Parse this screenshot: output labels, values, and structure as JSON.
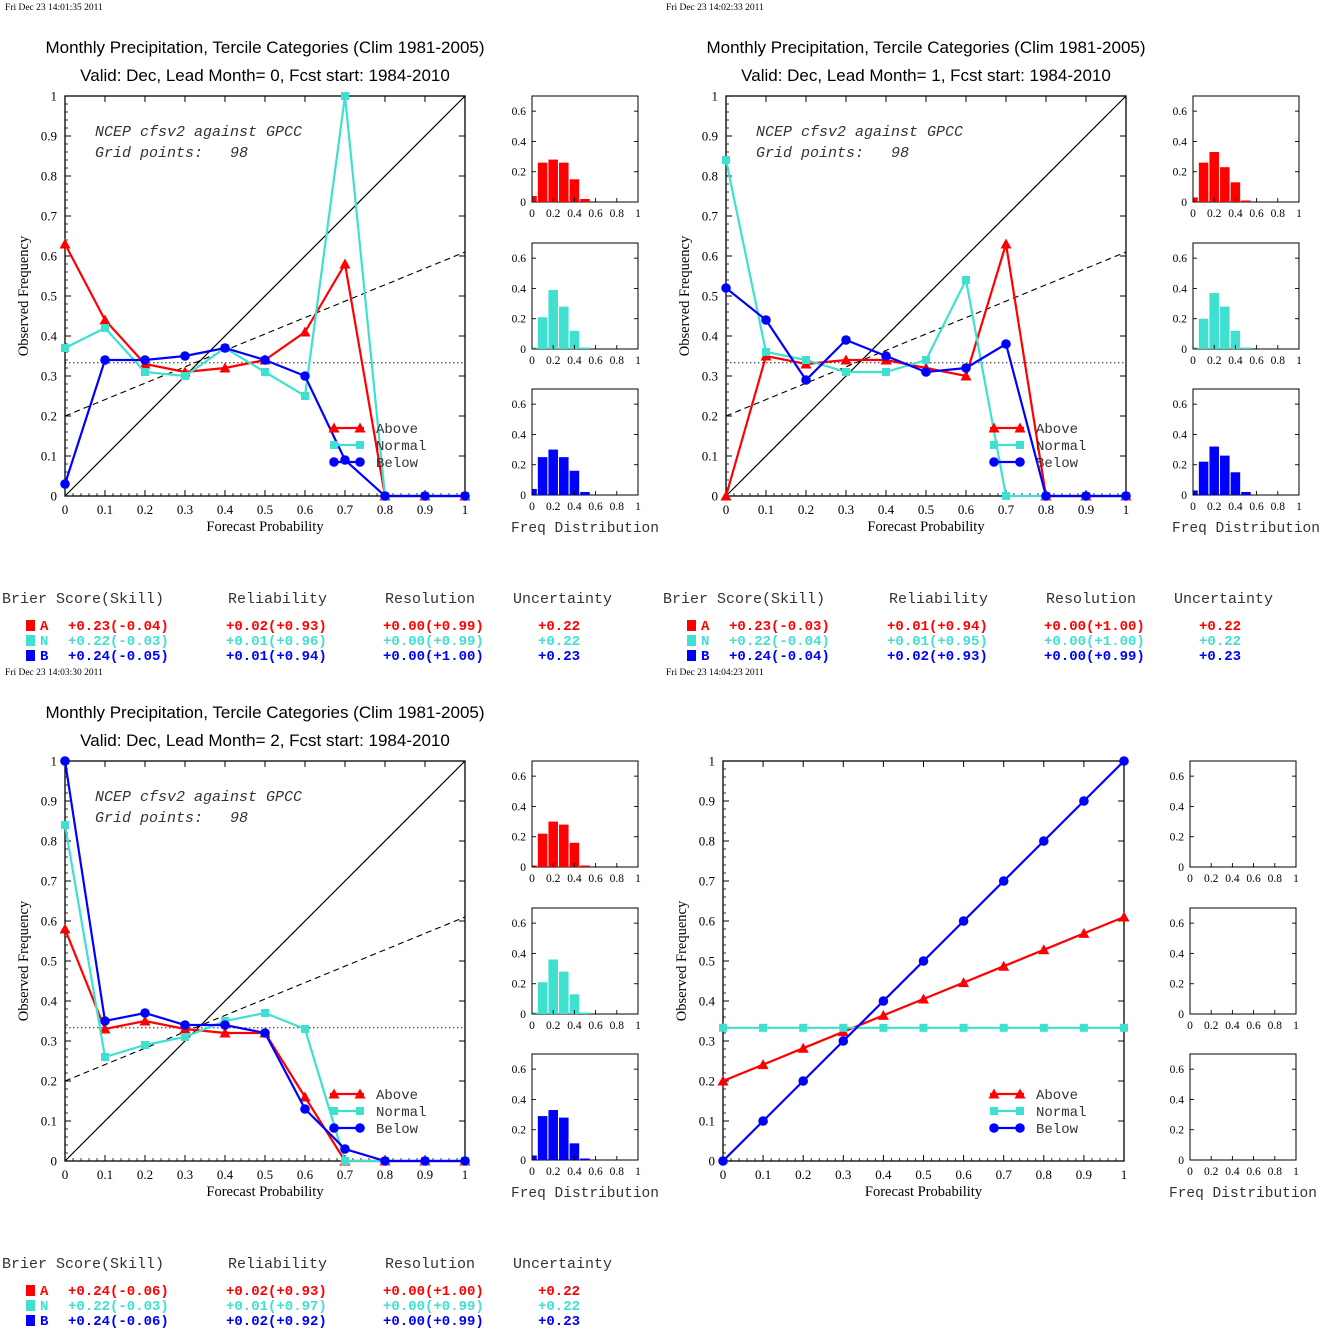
{
  "colors": {
    "above": "#ff0000",
    "normal": "#40e0d0",
    "below": "#0000ff"
  },
  "labels": {
    "ylabel": "Observed Frequency",
    "xlabel": "Forecast Probability",
    "freq_label": "Freq Distribution",
    "legend": [
      "Above",
      "Normal",
      "Below"
    ],
    "score_headers": [
      "Brier Score(Skill)",
      "Reliability",
      "Resolution",
      "Uncertainty"
    ],
    "score_letters": [
      "A",
      "N",
      "B"
    ],
    "x_ticks": [
      "0",
      "0.1",
      "0.2",
      "0.3",
      "0.4",
      "0.5",
      "0.6",
      "0.7",
      "0.8",
      "0.9",
      "1"
    ],
    "y_ticks": [
      "0",
      "0.1",
      "0.2",
      "0.3",
      "0.4",
      "0.5",
      "0.6",
      "0.7",
      "0.8",
      "0.9",
      "1"
    ],
    "hist_x_ticks": [
      "0",
      "0.2",
      "0.4",
      "0.6",
      "0.8",
      "1"
    ],
    "hist_y_ticks": [
      "0",
      "0.2",
      "0.4",
      "0.6"
    ]
  },
  "chart_data": [
    {
      "type": "line",
      "timestamp": "Fri Dec 23 14:01:35 2011",
      "title": "Monthly Precipitation, Tercile Categories (Clim 1981-2005)",
      "subtitle": "Valid: Dec, Lead Month= 0, Fcst start: 1984-2010",
      "note1": "NCEP cfsv2 against GPCC",
      "note2": "Grid points:   98",
      "xlim": [
        0,
        1
      ],
      "ylim": [
        0,
        1
      ],
      "climatology_line": 0.333,
      "skill_line": [
        0.2,
        0.61
      ],
      "x": [
        0,
        0.1,
        0.2,
        0.3,
        0.4,
        0.5,
        0.6,
        0.7,
        0.8,
        0.9,
        1
      ],
      "series": [
        {
          "name": "Above",
          "values": [
            0.63,
            0.44,
            0.33,
            0.31,
            0.32,
            0.34,
            0.41,
            0.58,
            0,
            0,
            0
          ]
        },
        {
          "name": "Normal",
          "values": [
            0.37,
            0.42,
            0.31,
            0.3,
            0.37,
            0.31,
            0.25,
            1.0,
            0,
            0,
            0
          ]
        },
        {
          "name": "Below",
          "values": [
            0.03,
            0.34,
            0.34,
            0.35,
            0.37,
            0.34,
            0.3,
            0.09,
            0,
            0,
            0
          ]
        }
      ],
      "hist": [
        [
          0.04,
          0.26,
          0.28,
          0.26,
          0.15,
          0.02,
          0,
          0,
          0,
          0,
          0
        ],
        [
          0.01,
          0.21,
          0.39,
          0.28,
          0.12,
          0.01,
          0,
          0,
          0,
          0,
          0
        ],
        [
          0.04,
          0.25,
          0.3,
          0.25,
          0.16,
          0.02,
          0,
          0,
          0,
          0,
          0
        ]
      ],
      "scores": {
        "A": [
          "+0.23(-0.04)",
          "+0.02(+0.93)",
          "+0.00(+0.99)",
          "+0.22"
        ],
        "N": [
          "+0.22(-0.03)",
          "+0.01(+0.96)",
          "+0.00(+0.99)",
          "+0.22"
        ],
        "B": [
          "+0.24(-0.05)",
          "+0.01(+0.94)",
          "+0.00(+1.00)",
          "+0.23"
        ]
      }
    },
    {
      "type": "line",
      "timestamp": "Fri Dec 23 14:02:33 2011",
      "title": "Monthly Precipitation, Tercile Categories (Clim 1981-2005)",
      "subtitle": "Valid: Dec, Lead Month= 1, Fcst start: 1984-2010",
      "note1": "NCEP cfsv2 against GPCC",
      "note2": "Grid points:   98",
      "xlim": [
        0,
        1
      ],
      "ylim": [
        0,
        1
      ],
      "climatology_line": 0.333,
      "skill_line": [
        0.2,
        0.61
      ],
      "x": [
        0,
        0.1,
        0.2,
        0.3,
        0.4,
        0.5,
        0.6,
        0.7,
        0.8,
        0.9,
        1
      ],
      "series": [
        {
          "name": "Above",
          "values": [
            0,
            0.35,
            0.33,
            0.34,
            0.34,
            0.32,
            0.3,
            0.63,
            0,
            0,
            0
          ]
        },
        {
          "name": "Normal",
          "values": [
            0.84,
            0.36,
            0.34,
            0.31,
            0.31,
            0.34,
            0.54,
            0,
            0,
            0,
            0
          ]
        },
        {
          "name": "Below",
          "values": [
            0.52,
            0.44,
            0.29,
            0.39,
            0.35,
            0.31,
            0.32,
            0.38,
            0,
            0,
            0
          ]
        }
      ],
      "hist": [
        [
          0.03,
          0.26,
          0.33,
          0.23,
          0.13,
          0.01,
          0,
          0,
          0,
          0,
          0
        ],
        [
          0.01,
          0.2,
          0.37,
          0.28,
          0.12,
          0.01,
          0,
          0,
          0,
          0,
          0
        ],
        [
          0.03,
          0.22,
          0.32,
          0.26,
          0.15,
          0.02,
          0,
          0,
          0,
          0,
          0
        ]
      ],
      "scores": {
        "A": [
          "+0.23(-0.03)",
          "+0.01(+0.94)",
          "+0.00(+1.00)",
          "+0.22"
        ],
        "N": [
          "+0.22(-0.04)",
          "+0.01(+0.95)",
          "+0.00(+1.00)",
          "+0.22"
        ],
        "B": [
          "+0.24(-0.04)",
          "+0.02(+0.93)",
          "+0.00(+0.99)",
          "+0.23"
        ]
      }
    },
    {
      "type": "line",
      "timestamp": "Fri Dec 23 14:03:30 2011",
      "title": "Monthly Precipitation, Tercile Categories (Clim 1981-2005)",
      "subtitle": "Valid: Dec, Lead Month= 2, Fcst start: 1984-2010",
      "note1": "NCEP cfsv2 against GPCC",
      "note2": "Grid points:   98",
      "xlim": [
        0,
        1
      ],
      "ylim": [
        0,
        1
      ],
      "climatology_line": 0.333,
      "skill_line": [
        0.2,
        0.61
      ],
      "x": [
        0,
        0.1,
        0.2,
        0.3,
        0.4,
        0.5,
        0.6,
        0.7,
        0.8,
        0.9,
        1
      ],
      "series": [
        {
          "name": "Above",
          "values": [
            0.58,
            0.33,
            0.35,
            0.33,
            0.32,
            0.32,
            0.16,
            0,
            0,
            0,
            0
          ]
        },
        {
          "name": "Normal",
          "values": [
            0.84,
            0.26,
            0.29,
            0.31,
            0.35,
            0.37,
            0.33,
            0,
            0,
            0,
            0
          ]
        },
        {
          "name": "Below",
          "values": [
            1.0,
            0.35,
            0.37,
            0.34,
            0.34,
            0.32,
            0.13,
            0.03,
            0,
            0,
            0
          ]
        }
      ],
      "hist": [
        [
          0.01,
          0.22,
          0.3,
          0.28,
          0.16,
          0.01,
          0,
          0,
          0,
          0,
          0
        ],
        [
          0.01,
          0.21,
          0.36,
          0.28,
          0.13,
          0.01,
          0,
          0,
          0,
          0,
          0
        ],
        [
          0.03,
          0.29,
          0.33,
          0.28,
          0.11,
          0.01,
          0,
          0,
          0,
          0,
          0
        ]
      ],
      "scores": {
        "A": [
          "+0.24(-0.06)",
          "+0.02(+0.93)",
          "+0.00(+1.00)",
          "+0.22"
        ],
        "N": [
          "+0.22(-0.03)",
          "+0.01(+0.97)",
          "+0.00(+0.99)",
          "+0.22"
        ],
        "B": [
          "+0.24(-0.06)",
          "+0.02(+0.92)",
          "+0.00(+0.99)",
          "+0.23"
        ]
      }
    },
    {
      "type": "line",
      "timestamp": "Fri Dec 23 14:04:23 2011",
      "xlim": [
        0,
        1
      ],
      "ylim": [
        0,
        1
      ],
      "x": [
        0,
        0.1,
        0.2,
        0.3,
        0.4,
        0.5,
        0.6,
        0.7,
        0.8,
        0.9,
        1
      ],
      "series": [
        {
          "name": "Above",
          "values": [
            0.2,
            0.241,
            0.282,
            0.323,
            0.364,
            0.405,
            0.446,
            0.487,
            0.528,
            0.569,
            0.61
          ]
        },
        {
          "name": "Normal",
          "values": [
            0.333,
            0.333,
            0.333,
            0.333,
            0.333,
            0.333,
            0.333,
            0.333,
            0.333,
            0.333,
            0.333
          ]
        },
        {
          "name": "Below",
          "values": [
            0,
            0.1,
            0.2,
            0.3,
            0.4,
            0.5,
            0.6,
            0.7,
            0.8,
            0.9,
            1.0
          ]
        }
      ],
      "hist": [
        [],
        [],
        []
      ]
    }
  ]
}
